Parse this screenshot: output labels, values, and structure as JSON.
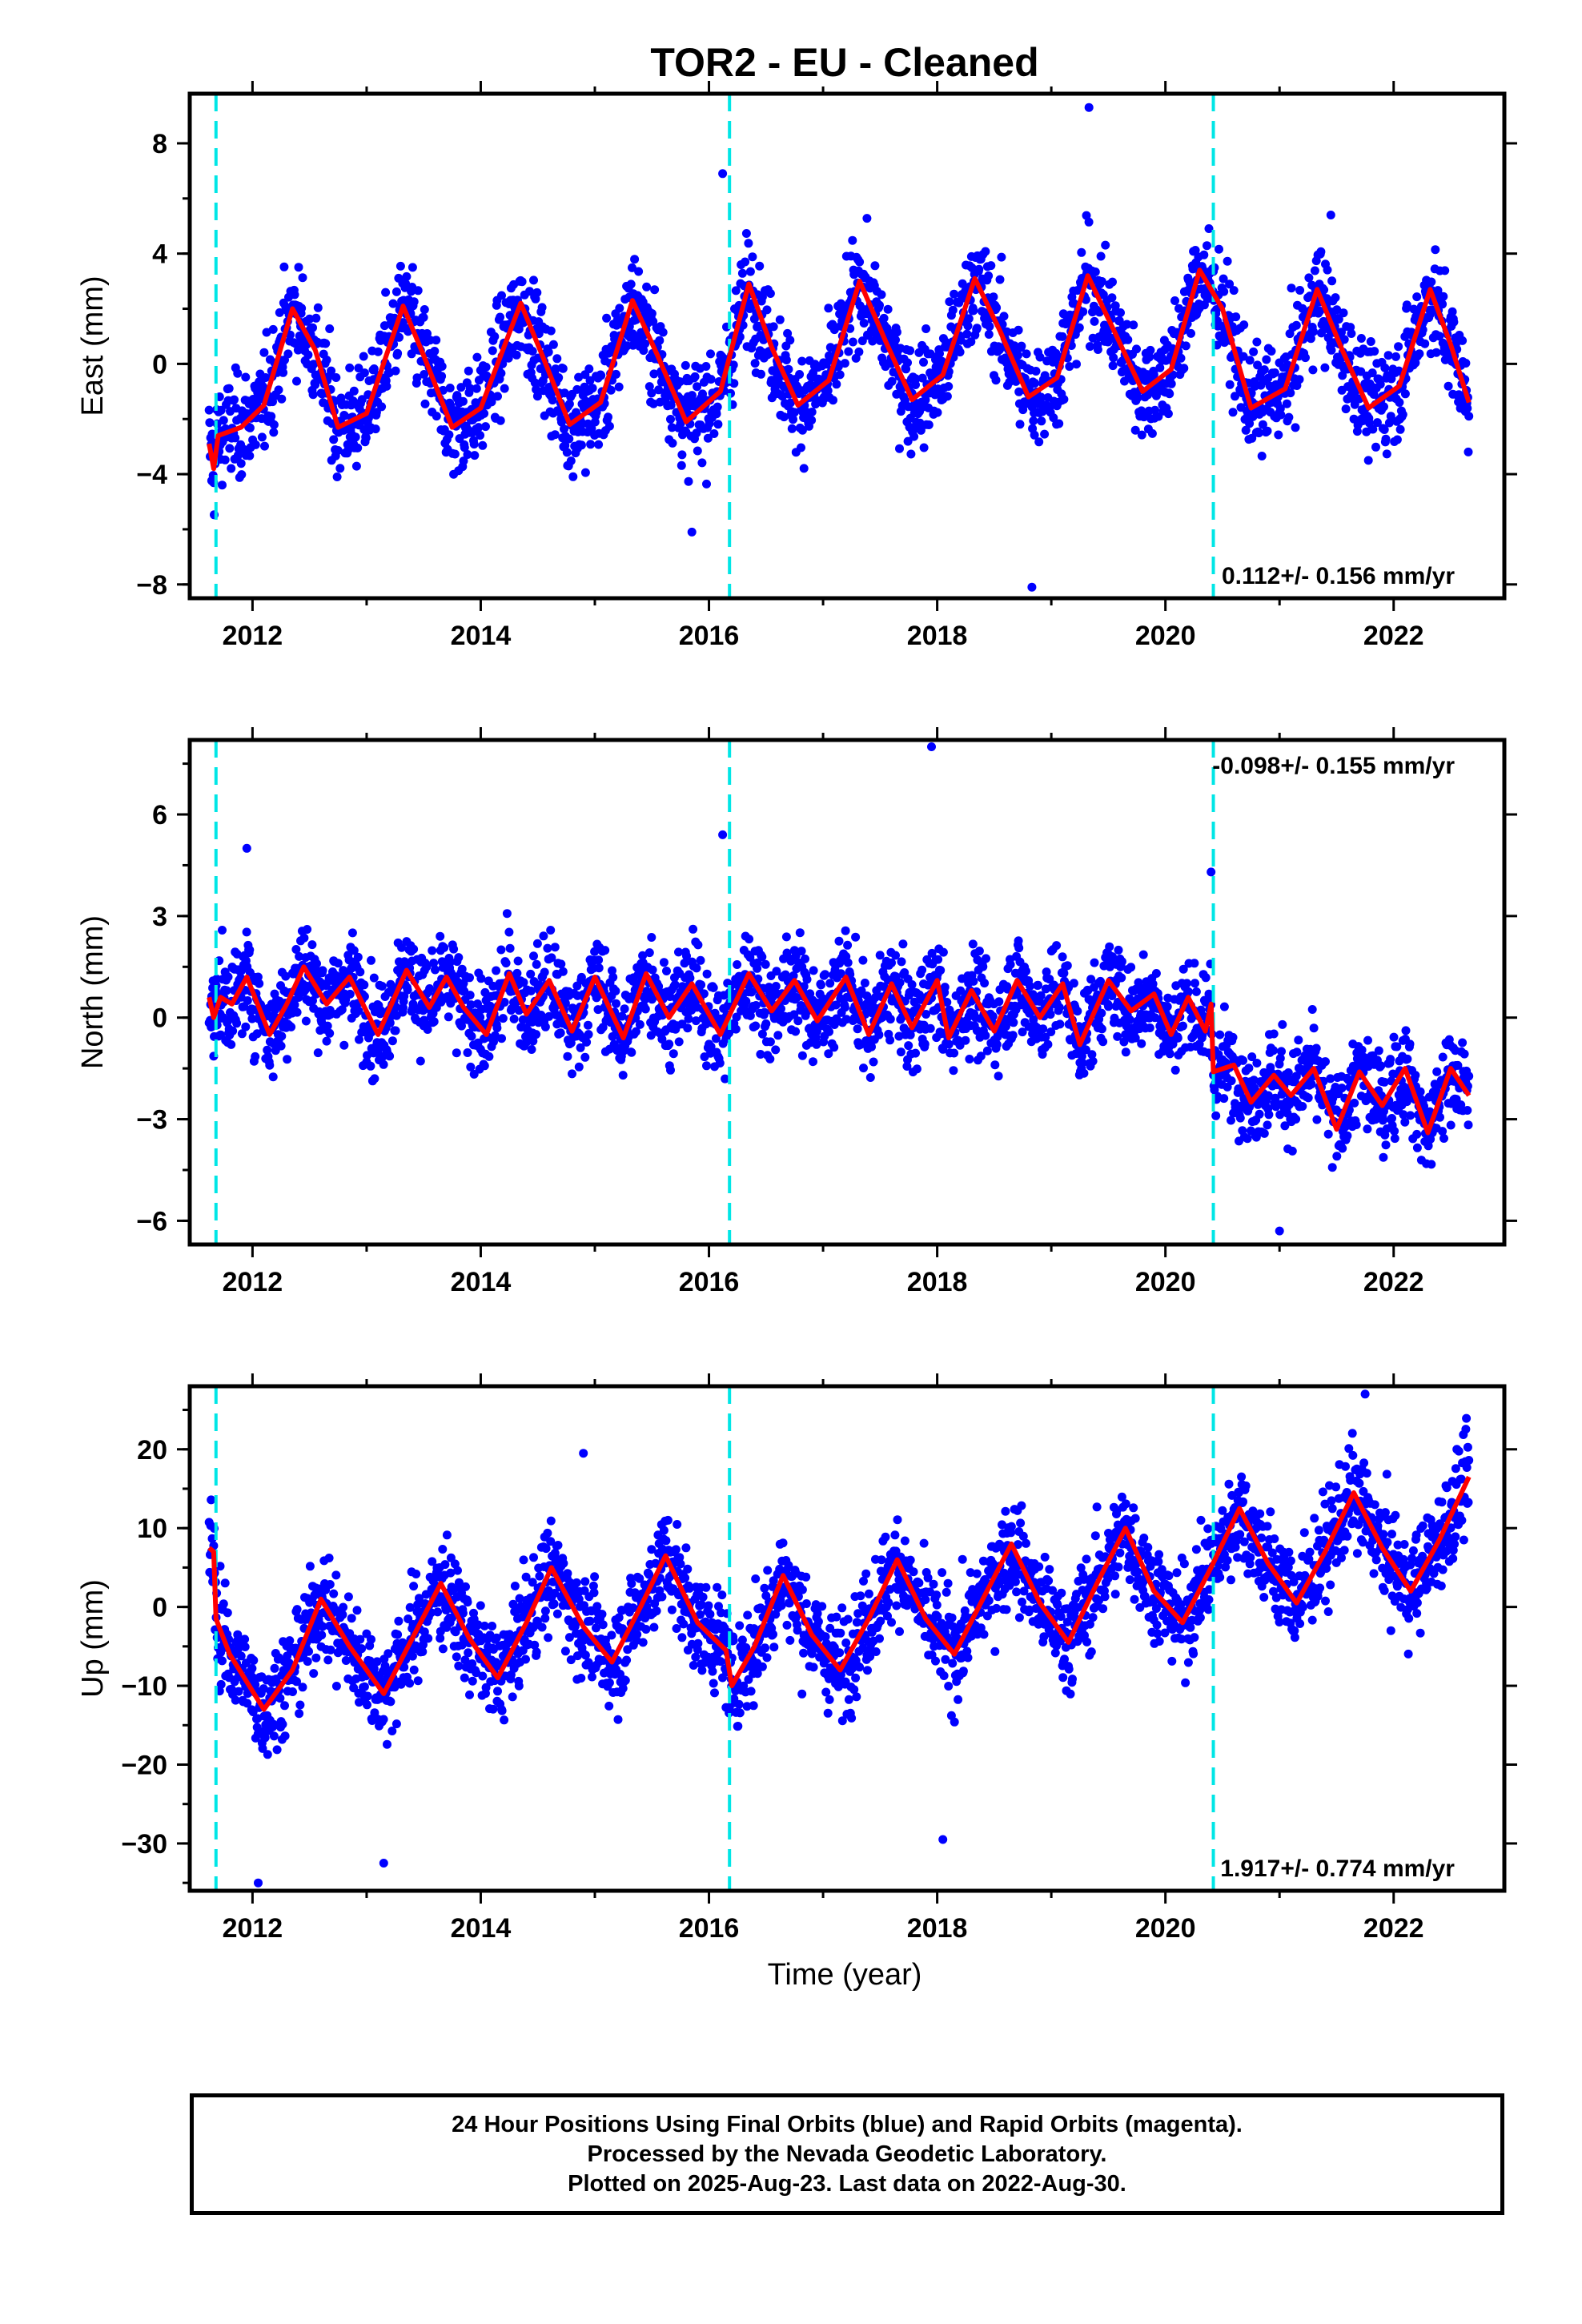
{
  "title": "TOR2  - EU - Cleaned",
  "colors": {
    "final_points": "#0000ff",
    "model": "#ff0000",
    "events": "#00e6e6",
    "frame": "#000000"
  },
  "x_axis": {
    "label": "Time (year)",
    "range": [
      2011.45,
      2022.97
    ],
    "ticks": [
      "2012",
      "2014",
      "2016",
      "2018",
      "2020",
      "2022"
    ]
  },
  "footer": {
    "line1": "24 Hour Positions Using Final Orbits (blue) and Rapid Orbits (magenta).",
    "line2": "Processed by the Nevada Geodetic Laboratory.",
    "line3": "Plotted on 2025-Aug-23. Last data on 2022-Aug-30."
  },
  "chart_data": [
    {
      "type": "scatter",
      "title": "TOR2  - EU - Cleaned",
      "xlabel": "",
      "ylabel": "East (mm)",
      "xlim": [
        2011.45,
        2022.97
      ],
      "ylim": [
        -8.5,
        9.8
      ],
      "yticks": [
        -8,
        -4,
        0,
        4,
        8
      ],
      "ytick_labels": [
        "−8",
        "−4",
        "0",
        "4",
        "8"
      ],
      "xtick_labels": [
        "2012",
        "2014",
        "2016",
        "2018",
        "2020",
        "2022"
      ],
      "event_lines": [
        2011.68,
        2016.18,
        2020.42
      ],
      "rate_label": "0.112+/- 0.156 mm/yr",
      "rate_position": "bottom-right",
      "series": [
        {
          "name": "Final Orbits",
          "points_summary": "daily positions 2011.6–2022.66 scattering about ±1.5 mm around the seasonal model",
          "outliers": [
            [
              2019.33,
              9.3
            ],
            [
              2018.83,
              -8.1
            ],
            [
              2015.85,
              -6.1
            ],
            [
              2016.12,
              6.9
            ],
            [
              2021.45,
              5.4
            ]
          ]
        },
        {
          "name": "model",
          "points": [
            [
              2011.62,
              -2.9
            ],
            [
              2011.66,
              -3.8
            ],
            [
              2011.7,
              -2.6
            ],
            [
              2011.9,
              -2.3
            ],
            [
              2012.1,
              -1.5
            ],
            [
              2012.35,
              2.0
            ],
            [
              2012.55,
              0.5
            ],
            [
              2012.75,
              -2.3
            ],
            [
              2013.0,
              -1.8
            ],
            [
              2013.32,
              2.1
            ],
            [
              2013.5,
              0.3
            ],
            [
              2013.75,
              -2.3
            ],
            [
              2014.0,
              -1.6
            ],
            [
              2014.35,
              2.2
            ],
            [
              2014.55,
              0.2
            ],
            [
              2014.78,
              -2.2
            ],
            [
              2015.05,
              -1.4
            ],
            [
              2015.33,
              2.3
            ],
            [
              2015.55,
              0.3
            ],
            [
              2015.8,
              -2.1
            ],
            [
              2016.1,
              -1.0
            ],
            [
              2016.35,
              2.9
            ],
            [
              2016.55,
              0.6
            ],
            [
              2016.78,
              -1.5
            ],
            [
              2017.05,
              -0.6
            ],
            [
              2017.32,
              3.0
            ],
            [
              2017.55,
              0.8
            ],
            [
              2017.78,
              -1.3
            ],
            [
              2018.05,
              -0.4
            ],
            [
              2018.33,
              3.1
            ],
            [
              2018.55,
              1.2
            ],
            [
              2018.8,
              -1.2
            ],
            [
              2019.05,
              -0.5
            ],
            [
              2019.32,
              3.2
            ],
            [
              2019.55,
              1.2
            ],
            [
              2019.8,
              -1.0
            ],
            [
              2020.05,
              -0.2
            ],
            [
              2020.3,
              3.4
            ],
            [
              2020.5,
              2.0
            ],
            [
              2020.75,
              -1.6
            ],
            [
              2021.05,
              -0.9
            ],
            [
              2021.33,
              2.7
            ],
            [
              2021.55,
              0.5
            ],
            [
              2021.78,
              -1.6
            ],
            [
              2022.05,
              -0.8
            ],
            [
              2022.32,
              2.7
            ],
            [
              2022.5,
              0.7
            ],
            [
              2022.66,
              -1.4
            ]
          ]
        }
      ]
    },
    {
      "type": "scatter",
      "xlabel": "",
      "ylabel": "North (mm)",
      "xlim": [
        2011.45,
        2022.97
      ],
      "ylim": [
        -6.7,
        8.2
      ],
      "yticks": [
        -6,
        -3,
        0,
        3,
        6
      ],
      "ytick_labels": [
        "−6",
        "−3",
        "0",
        "3",
        "6"
      ],
      "xtick_labels": [
        "2012",
        "2014",
        "2016",
        "2018",
        "2020",
        "2022"
      ],
      "event_lines": [
        2011.68,
        2016.18,
        2020.42
      ],
      "rate_label": "-0.098+/- 0.155 mm/yr",
      "rate_position": "top-right",
      "series": [
        {
          "name": "Final Orbits",
          "points_summary": "daily positions scattering about ±1.2 mm; offset of about −2 mm after 2020.42",
          "outliers": [
            [
              2017.95,
              8.0
            ],
            [
              2016.12,
              5.4
            ],
            [
              2011.95,
              5.0
            ],
            [
              2021.0,
              -6.3
            ],
            [
              2020.4,
              4.3
            ]
          ]
        },
        {
          "name": "model",
          "points": [
            [
              2011.62,
              0.6
            ],
            [
              2011.66,
              0.0
            ],
            [
              2011.72,
              0.6
            ],
            [
              2011.82,
              0.4
            ],
            [
              2011.95,
              1.2
            ],
            [
              2012.15,
              -0.5
            ],
            [
              2012.3,
              0.4
            ],
            [
              2012.45,
              1.5
            ],
            [
              2012.65,
              0.4
            ],
            [
              2012.85,
              1.2
            ],
            [
              2013.1,
              -0.5
            ],
            [
              2013.35,
              1.4
            ],
            [
              2013.55,
              0.3
            ],
            [
              2013.7,
              1.2
            ],
            [
              2013.85,
              0.3
            ],
            [
              2014.05,
              -0.5
            ],
            [
              2014.25,
              1.3
            ],
            [
              2014.4,
              0.1
            ],
            [
              2014.6,
              1.1
            ],
            [
              2014.8,
              -0.4
            ],
            [
              2015.0,
              1.2
            ],
            [
              2015.25,
              -0.6
            ],
            [
              2015.45,
              1.3
            ],
            [
              2015.65,
              0.0
            ],
            [
              2015.85,
              1.0
            ],
            [
              2016.1,
              -0.5
            ],
            [
              2016.35,
              1.3
            ],
            [
              2016.55,
              0.2
            ],
            [
              2016.75,
              1.1
            ],
            [
              2016.95,
              -0.1
            ],
            [
              2017.2,
              1.2
            ],
            [
              2017.4,
              -0.5
            ],
            [
              2017.6,
              1.0
            ],
            [
              2017.78,
              -0.3
            ],
            [
              2018.0,
              1.1
            ],
            [
              2018.1,
              -0.6
            ],
            [
              2018.3,
              0.8
            ],
            [
              2018.5,
              -0.4
            ],
            [
              2018.7,
              1.1
            ],
            [
              2018.9,
              0.0
            ],
            [
              2019.1,
              1.0
            ],
            [
              2019.25,
              -0.8
            ],
            [
              2019.5,
              1.1
            ],
            [
              2019.7,
              0.2
            ],
            [
              2019.9,
              0.7
            ],
            [
              2020.05,
              -0.5
            ],
            [
              2020.2,
              0.6
            ],
            [
              2020.35,
              -0.4
            ],
            [
              2020.4,
              0.4
            ],
            [
              2020.42,
              -1.6
            ],
            [
              2020.6,
              -1.4
            ],
            [
              2020.75,
              -2.5
            ],
            [
              2020.95,
              -1.7
            ],
            [
              2021.1,
              -2.3
            ],
            [
              2021.3,
              -1.5
            ],
            [
              2021.5,
              -3.3
            ],
            [
              2021.7,
              -1.6
            ],
            [
              2021.9,
              -2.6
            ],
            [
              2022.1,
              -1.5
            ],
            [
              2022.3,
              -3.4
            ],
            [
              2022.5,
              -1.5
            ],
            [
              2022.66,
              -2.3
            ]
          ]
        }
      ]
    },
    {
      "type": "scatter",
      "xlabel": "Time (year)",
      "ylabel": "Up (mm)",
      "xlim": [
        2011.45,
        2022.97
      ],
      "ylim": [
        -36,
        28
      ],
      "yticks": [
        -30,
        -20,
        -10,
        0,
        10,
        20
      ],
      "ytick_labels": [
        "−30",
        "−20",
        "−10",
        "0",
        "10",
        "20"
      ],
      "xtick_labels": [
        "2012",
        "2014",
        "2016",
        "2018",
        "2020",
        "2022"
      ],
      "event_lines": [
        2011.68,
        2016.18,
        2020.42
      ],
      "rate_label": "1.917+/- 0.774 mm/yr",
      "rate_position": "bottom-right",
      "series": [
        {
          "name": "Final Orbits",
          "points_summary": "daily positions scattering about ±5 mm around the seasonal model",
          "outliers": [
            [
              2012.05,
              -35.0
            ],
            [
              2013.15,
              -32.5
            ],
            [
              2021.75,
              27.0
            ],
            [
              2014.9,
              19.5
            ],
            [
              2018.05,
              -29.5
            ]
          ]
        },
        {
          "name": "model",
          "points": [
            [
              2011.62,
              7.5
            ],
            [
              2011.66,
              7.0
            ],
            [
              2011.68,
              -1.5
            ],
            [
              2011.8,
              -6.0
            ],
            [
              2012.1,
              -13.0
            ],
            [
              2012.35,
              -8.0
            ],
            [
              2012.6,
              1.0
            ],
            [
              2012.85,
              -5.0
            ],
            [
              2013.15,
              -11.0
            ],
            [
              2013.4,
              -4.0
            ],
            [
              2013.65,
              3.0
            ],
            [
              2013.9,
              -4.0
            ],
            [
              2014.15,
              -9.0
            ],
            [
              2014.4,
              -2.0
            ],
            [
              2014.62,
              5.0
            ],
            [
              2014.9,
              -2.5
            ],
            [
              2015.15,
              -7.0
            ],
            [
              2015.4,
              0.0
            ],
            [
              2015.62,
              6.5
            ],
            [
              2015.9,
              -2.0
            ],
            [
              2016.15,
              -5.5
            ],
            [
              2016.2,
              -10.0
            ],
            [
              2016.4,
              -5.0
            ],
            [
              2016.65,
              4.0
            ],
            [
              2016.9,
              -3.5
            ],
            [
              2017.15,
              -8.0
            ],
            [
              2017.4,
              -1.5
            ],
            [
              2017.65,
              6.0
            ],
            [
              2017.9,
              -1.5
            ],
            [
              2018.15,
              -6.0
            ],
            [
              2018.4,
              1.0
            ],
            [
              2018.65,
              8.0
            ],
            [
              2018.9,
              0.5
            ],
            [
              2019.15,
              -4.5
            ],
            [
              2019.4,
              3.0
            ],
            [
              2019.65,
              10.0
            ],
            [
              2019.9,
              2.0
            ],
            [
              2020.15,
              -2.0
            ],
            [
              2020.4,
              5.0
            ],
            [
              2020.65,
              12.5
            ],
            [
              2020.9,
              5.5
            ],
            [
              2021.15,
              0.5
            ],
            [
              2021.4,
              7.0
            ],
            [
              2021.65,
              14.5
            ],
            [
              2021.9,
              7.5
            ],
            [
              2022.15,
              2.0
            ],
            [
              2022.4,
              8.5
            ],
            [
              2022.66,
              16.5
            ]
          ]
        }
      ]
    }
  ]
}
